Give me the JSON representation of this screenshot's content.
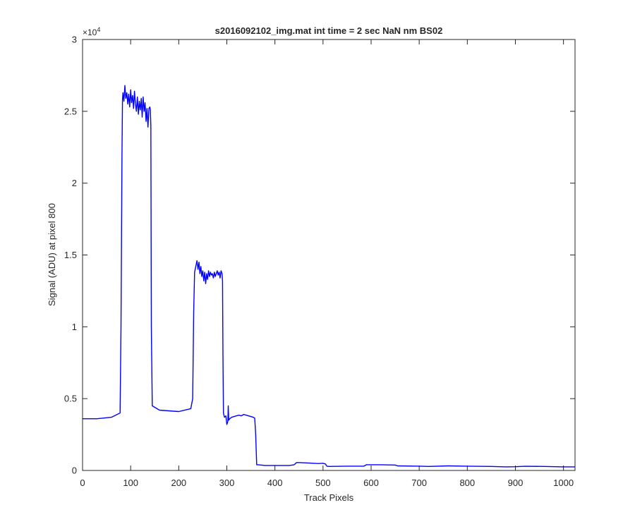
{
  "chart_data": {
    "type": "line",
    "title": "s2016092102_img.mat int time = 2 sec  NaN nm BS02",
    "xlabel": "Track Pixels",
    "ylabel": "Signal (ADU) at pixel 800",
    "y_exponent_label": "×10",
    "y_exponent": "4",
    "xlim": [
      0,
      1024
    ],
    "ylim": [
      0,
      30000
    ],
    "x_ticks": [
      0,
      100,
      200,
      300,
      400,
      500,
      600,
      700,
      800,
      900,
      1000
    ],
    "x_tick_labels": [
      "0",
      "100",
      "200",
      "300",
      "400",
      "500",
      "600",
      "700",
      "800",
      "900",
      "1000"
    ],
    "y_ticks": [
      0,
      5000,
      10000,
      15000,
      20000,
      25000,
      30000
    ],
    "y_tick_labels": [
      "0",
      "0.5",
      "1",
      "1.5",
      "2",
      "2.5",
      "3"
    ],
    "grid": false,
    "line_color": "#0000ff",
    "series": [
      {
        "x": [
          0,
          30,
          60,
          78,
          80,
          82,
          83,
          84,
          86,
          88,
          90,
          92,
          94,
          96,
          98,
          100,
          102,
          104,
          106,
          108,
          110,
          112,
          114,
          116,
          118,
          120,
          122,
          124,
          126,
          128,
          130,
          132,
          134,
          136,
          138,
          140,
          141,
          142,
          143,
          145,
          160,
          200,
          225,
          229,
          231,
          233,
          236,
          238,
          240,
          242,
          244,
          246,
          248,
          250,
          252,
          254,
          256,
          258,
          260,
          262,
          264,
          266,
          268,
          270,
          272,
          274,
          276,
          278,
          280,
          282,
          284,
          286,
          288,
          290,
          291,
          292,
          293,
          295,
          298,
          300,
          302,
          303,
          304,
          306,
          310,
          315,
          320,
          325,
          330,
          335,
          340,
          345,
          350,
          355,
          358,
          360,
          362,
          365,
          380,
          400,
          430,
          440,
          445,
          450,
          470,
          490,
          500,
          505,
          508,
          512,
          550,
          585,
          590,
          620,
          650,
          655,
          700,
          720,
          760,
          800,
          850,
          880,
          900,
          920,
          960,
          1000,
          1024
        ],
        "y": [
          3600,
          3600,
          3700,
          4000,
          10000,
          22000,
          25800,
          26300,
          25700,
          26800,
          25900,
          26300,
          25500,
          26200,
          25300,
          26500,
          25600,
          26100,
          25200,
          26400,
          25500,
          25000,
          26000,
          24800,
          25700,
          25100,
          25900,
          24600,
          26000,
          25000,
          25600,
          24300,
          25200,
          23900,
          25200,
          25300,
          25100,
          24000,
          10000,
          4500,
          4200,
          4100,
          4300,
          5000,
          11000,
          13800,
          14300,
          14600,
          14000,
          14500,
          13700,
          14200,
          13500,
          13900,
          13200,
          13800,
          13000,
          13700,
          13300,
          13900,
          13500,
          13800,
          13600,
          13700,
          13400,
          13800,
          13500,
          13700,
          13900,
          13600,
          13800,
          13400,
          13900,
          13700,
          13200,
          8000,
          4000,
          3700,
          3800,
          3200,
          3400,
          4500,
          3500,
          3600,
          3700,
          3750,
          3800,
          3850,
          3800,
          3900,
          3850,
          3800,
          3750,
          3700,
          3650,
          2500,
          400,
          400,
          350,
          350,
          350,
          400,
          550,
          550,
          520,
          480,
          500,
          450,
          300,
          280,
          300,
          300,
          400,
          400,
          380,
          320,
          300,
          280,
          320,
          300,
          280,
          250,
          260,
          290,
          280,
          250,
          250
        ]
      }
    ]
  }
}
